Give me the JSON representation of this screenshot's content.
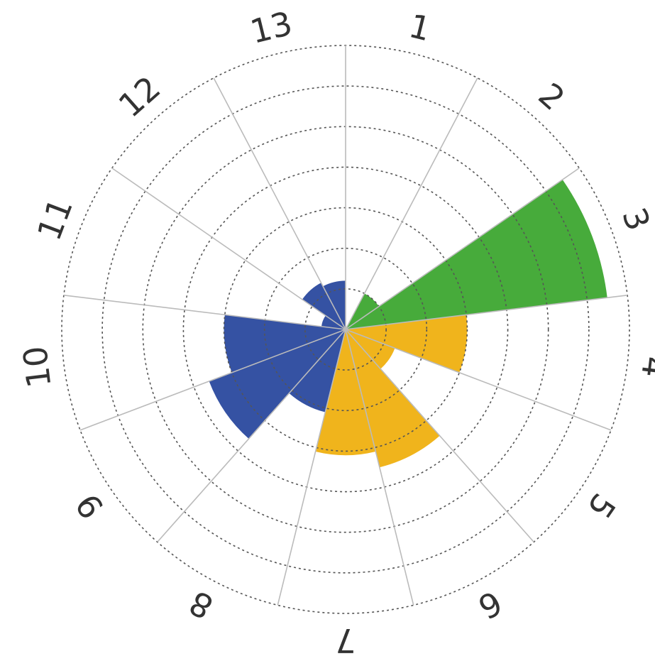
{
  "chart_data": {
    "type": "polar-bar",
    "title": "",
    "categories": [
      "1",
      "2",
      "3",
      "4",
      "5",
      "6",
      "7",
      "8",
      "9",
      "10",
      "11",
      "12",
      "13"
    ],
    "rlim": [
      0,
      7
    ],
    "grid": true,
    "legend": "none",
    "direction": "clockwise",
    "series": [
      {
        "color": "#f0b41c",
        "values": [
          null,
          null,
          null,
          3.0,
          1.3,
          3.5,
          3.1,
          null,
          null,
          null,
          null,
          null,
          null
        ]
      },
      {
        "color": "#47ab3b",
        "values": [
          null,
          1.0,
          6.5,
          null,
          null,
          null,
          null,
          null,
          null,
          null,
          null,
          null,
          null
        ]
      },
      {
        "color": "#3552a3",
        "values": [
          null,
          null,
          null,
          null,
          null,
          null,
          null,
          2.1,
          3.6,
          3.0,
          0.6,
          1.3,
          1.2
        ]
      }
    ]
  }
}
